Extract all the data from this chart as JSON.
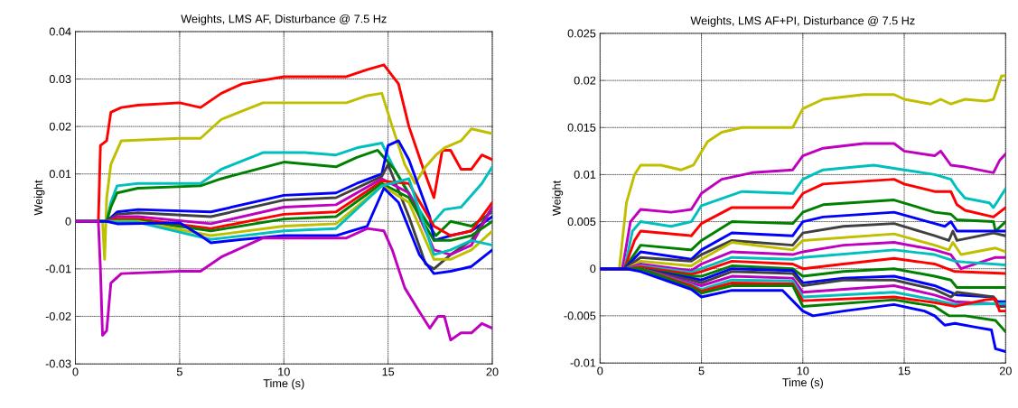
{
  "chart_data": [
    {
      "type": "line",
      "title": "Weights, LMS AF, Disturbance @ 7.5 Hz",
      "xlabel": "Time (s)",
      "ylabel": "Weight",
      "xlim": [
        0,
        20
      ],
      "ylim": [
        -0.03,
        0.04
      ],
      "xticks": [
        0,
        5,
        10,
        15,
        20
      ],
      "yticks": [
        -0.03,
        -0.02,
        -0.01,
        0,
        0.01,
        0.02,
        0.03,
        0.04
      ],
      "grid": true,
      "series": [
        {
          "color": "#ff0000",
          "x": [
            0,
            1.1,
            1.2,
            1.5,
            1.7,
            2.2,
            3,
            5,
            6,
            7,
            8,
            10,
            13,
            14,
            14.8,
            15.5,
            16,
            16.7,
            17.2,
            17.6,
            18,
            18.5,
            19,
            19.5,
            20
          ],
          "values": [
            0,
            0,
            0.016,
            0.017,
            0.023,
            0.024,
            0.0245,
            0.025,
            0.024,
            0.027,
            0.029,
            0.0305,
            0.0305,
            0.032,
            0.033,
            0.029,
            0.02,
            0.011,
            0.005,
            0.015,
            0.015,
            0.011,
            0.011,
            0.014,
            0.013
          ]
        },
        {
          "color": "#bfbf00",
          "x": [
            0,
            1.3,
            1.4,
            1.5,
            1.7,
            2.2,
            5,
            6,
            7,
            9,
            13,
            14,
            14.7,
            15.2,
            15.8,
            16.3,
            16.8,
            17.3,
            17.7,
            18.5,
            19,
            19.5,
            20
          ],
          "values": [
            0,
            0,
            -0.008,
            0.005,
            0.012,
            0.017,
            0.0175,
            0.0175,
            0.0215,
            0.025,
            0.025,
            0.0265,
            0.027,
            0.02,
            0.012,
            0.008,
            0.0115,
            0.014,
            0.0155,
            0.017,
            0.0195,
            0.019,
            0.0185
          ]
        },
        {
          "color": "#00bfbf",
          "x": [
            0,
            1.5,
            1.7,
            2,
            3,
            6,
            7,
            9,
            11,
            12.5,
            13.5,
            14.7,
            15.3,
            16,
            17,
            17.7,
            18.5,
            19.5,
            20
          ],
          "values": [
            0,
            0,
            0.004,
            0.0075,
            0.008,
            0.008,
            0.011,
            0.0145,
            0.0145,
            0.014,
            0.0155,
            0.0165,
            0.011,
            0.006,
            -0.001,
            0.0025,
            0.003,
            0.008,
            0.0115
          ]
        },
        {
          "color": "#008000",
          "x": [
            0,
            1.5,
            1.7,
            2,
            3,
            6,
            7,
            10,
            12.5,
            13.5,
            14.5,
            15.3,
            16.5,
            17.3,
            18,
            19,
            20
          ],
          "values": [
            0,
            0,
            0.003,
            0.006,
            0.007,
            0.0075,
            0.009,
            0.0125,
            0.0115,
            0.0135,
            0.015,
            0.011,
            0.002,
            -0.003,
            0,
            -0.001,
            0.002
          ]
        },
        {
          "color": "#0000ff",
          "x": [
            0,
            1.5,
            2,
            3,
            6.5,
            10,
            12.5,
            13.5,
            14.7,
            15,
            15.5,
            16,
            17,
            17.2,
            18,
            19,
            20
          ],
          "values": [
            0,
            0,
            0.002,
            0.0025,
            0.002,
            0.0055,
            0.006,
            0.008,
            0.01,
            0.016,
            0.017,
            0.013,
            0.001,
            -0.004,
            -0.003,
            -0.002,
            0.001
          ]
        },
        {
          "color": "#404040",
          "x": [
            0,
            1.5,
            2,
            3,
            6.5,
            10,
            12.5,
            14.7,
            15,
            16,
            16.8,
            17.2,
            18,
            19,
            20
          ],
          "values": [
            0,
            0,
            0.0015,
            0.0018,
            0.001,
            0.0045,
            0.005,
            0.0095,
            0.012,
            0.001,
            -0.009,
            -0.01,
            -0.007,
            -0.004,
            0.003
          ]
        },
        {
          "color": "#bf00bf",
          "x": [
            0,
            1.5,
            2,
            3,
            6.5,
            10,
            12.5,
            14.7,
            16,
            17.2,
            18,
            19,
            20
          ],
          "values": [
            0,
            0,
            0.001,
            0.001,
            -0.0005,
            0.003,
            0.0035,
            0.009,
            0.006,
            -0.006,
            -0.007,
            -0.005,
            0.003
          ]
        },
        {
          "color": "#ff0000",
          "x": [
            0,
            1.5,
            2,
            3,
            6.5,
            10,
            12.5,
            14.7,
            16,
            17.2,
            18,
            19,
            20
          ],
          "values": [
            0,
            0,
            0.0005,
            0.0005,
            -0.0015,
            0.0015,
            0.002,
            0.0085,
            0.008,
            -0.001,
            -0.003,
            -0.002,
            0.004
          ]
        },
        {
          "color": "#008000",
          "x": [
            0,
            1.5,
            2,
            3,
            6.5,
            10,
            12.5,
            14.7,
            16,
            17.2,
            18,
            19,
            20
          ],
          "values": [
            0,
            0,
            0.0002,
            0.0002,
            -0.002,
            0.0005,
            0.001,
            0.008,
            0.005,
            -0.004,
            -0.004,
            -0.003,
            0
          ]
        },
        {
          "color": "#bfbf00",
          "x": [
            0,
            1.5,
            2,
            3,
            6.5,
            10,
            12.5,
            14.7,
            16,
            17.2,
            18,
            19,
            20
          ],
          "values": [
            0,
            0,
            0,
            0,
            -0.003,
            -0.001,
            -0.0005,
            0.0075,
            0.004,
            -0.008,
            -0.008,
            -0.006,
            -0.002
          ]
        },
        {
          "color": "#00bfbf",
          "x": [
            0,
            1.5,
            2,
            3,
            6.5,
            10,
            12.5,
            14.7,
            16,
            17.2,
            18,
            19,
            20
          ],
          "values": [
            0,
            0,
            -0.0002,
            -0.0002,
            -0.0038,
            -0.002,
            -0.0015,
            0.0075,
            0.009,
            -0.007,
            -0.006,
            -0.004,
            -0.005
          ]
        },
        {
          "color": "#0000ff",
          "x": [
            0,
            1.5,
            2,
            5,
            6,
            6.5,
            8,
            10,
            12.5,
            14,
            14.8,
            15.5,
            16.5,
            17.2,
            18,
            19,
            20
          ],
          "values": [
            0,
            0,
            -0.0005,
            -0.0003,
            -0.003,
            -0.0045,
            -0.0038,
            -0.003,
            -0.003,
            -0.001,
            0.007,
            0.004,
            -0.007,
            -0.011,
            -0.0105,
            -0.0095,
            -0.006
          ]
        },
        {
          "color": "#bf00bf",
          "x": [
            0,
            1.1,
            1.2,
            1.3,
            1.5,
            1.7,
            2.2,
            5,
            6,
            7,
            9,
            13,
            14,
            14.8,
            15.2,
            15.8,
            16.5,
            17,
            17.4,
            17.7,
            18,
            18.5,
            19,
            19.5,
            20
          ],
          "values": [
            0,
            0,
            -0.01,
            -0.024,
            -0.023,
            -0.013,
            -0.011,
            -0.0105,
            -0.0105,
            -0.0075,
            -0.0035,
            -0.0035,
            -0.0015,
            -0.002,
            -0.006,
            -0.014,
            -0.019,
            -0.0225,
            -0.02,
            -0.02,
            -0.025,
            -0.0235,
            -0.0235,
            -0.0215,
            -0.0225
          ]
        }
      ]
    },
    {
      "type": "line",
      "title": "Weights, LMS AF+PI, Disturbance @ 7.5 Hz",
      "xlabel": "Time (s)",
      "ylabel": "Weight",
      "xlim": [
        0,
        20
      ],
      "ylim": [
        -0.01,
        0.025
      ],
      "xticks": [
        0,
        5,
        10,
        15,
        20
      ],
      "yticks": [
        -0.01,
        -0.005,
        0,
        0.005,
        0.01,
        0.015,
        0.02,
        0.025
      ],
      "grid": true,
      "series": [
        {
          "color": "#bfbf00",
          "x": [
            0,
            0.95,
            1.3,
            1.7,
            2,
            3,
            4,
            4.6,
            5.3,
            6,
            7,
            9.5,
            10,
            11,
            13,
            14.5,
            15,
            16.3,
            16.8,
            17.3,
            18,
            19,
            19.4,
            19.8,
            20
          ],
          "values": [
            0,
            0,
            0.007,
            0.01,
            0.011,
            0.011,
            0.0105,
            0.011,
            0.0135,
            0.0145,
            0.015,
            0.015,
            0.017,
            0.018,
            0.0185,
            0.0185,
            0.018,
            0.0175,
            0.018,
            0.0175,
            0.018,
            0.0178,
            0.018,
            0.0205,
            0.0205
          ]
        },
        {
          "color": "#bf00bf",
          "x": [
            0,
            1.1,
            1.5,
            2,
            3.5,
            4.5,
            5,
            6,
            7.5,
            9.5,
            10,
            11,
            13,
            14.5,
            15,
            16.5,
            16.8,
            17.3,
            18,
            19.4,
            19.7,
            20
          ],
          "values": [
            0,
            0,
            0.005,
            0.0063,
            0.006,
            0.0063,
            0.008,
            0.0095,
            0.0102,
            0.0105,
            0.012,
            0.0128,
            0.0133,
            0.0133,
            0.0125,
            0.012,
            0.0125,
            0.011,
            0.0108,
            0.0102,
            0.0115,
            0.0122
          ]
        },
        {
          "color": "#00bfbf",
          "x": [
            0,
            1.2,
            1.6,
            2,
            3.5,
            4.5,
            5,
            7,
            9.5,
            10,
            11,
            13.5,
            15,
            16.5,
            17.3,
            17.6,
            18,
            19.2,
            19.4,
            20
          ],
          "values": [
            0,
            0,
            0.004,
            0.005,
            0.0045,
            0.005,
            0.0067,
            0.0082,
            0.008,
            0.0095,
            0.0105,
            0.011,
            0.0105,
            0.01,
            0.0095,
            0.0085,
            0.0075,
            0.007,
            0.0065,
            0.0085
          ]
        },
        {
          "color": "#ff0000",
          "x": [
            0,
            1.2,
            1.7,
            2,
            4.5,
            5,
            6.5,
            9.5,
            10,
            11,
            14.5,
            15,
            16.5,
            17.3,
            17.6,
            18,
            19.4,
            20
          ],
          "values": [
            0,
            0,
            0.003,
            0.004,
            0.0035,
            0.0048,
            0.0065,
            0.0065,
            0.008,
            0.009,
            0.0095,
            0.009,
            0.0082,
            0.0082,
            0.0068,
            0.0062,
            0.0055,
            0.0065
          ]
        },
        {
          "color": "#008000",
          "x": [
            0,
            1.2,
            2,
            4.5,
            5,
            6.5,
            9.5,
            10,
            11,
            14.5,
            16.5,
            17.3,
            17.6,
            19.4,
            19.5,
            20
          ],
          "values": [
            0,
            0,
            0.0025,
            0.002,
            0.003,
            0.005,
            0.0048,
            0.006,
            0.0068,
            0.0073,
            0.006,
            0.0058,
            0.0052,
            0.005,
            0.004,
            0.005
          ]
        },
        {
          "color": "#0000ff",
          "x": [
            0,
            1.2,
            2,
            4.5,
            5,
            6.5,
            9.5,
            10,
            11,
            14.5,
            16.5,
            17,
            17.3,
            17.6,
            19.4,
            20
          ],
          "values": [
            0,
            0,
            0.0018,
            0.001,
            0.002,
            0.0038,
            0.0035,
            0.005,
            0.0055,
            0.006,
            0.0048,
            0.0045,
            0.005,
            0.004,
            0.004,
            0.004
          ]
        },
        {
          "color": "#404040",
          "x": [
            0,
            1.2,
            2,
            4.5,
            5,
            6.5,
            9.5,
            10,
            12,
            14.5,
            16.5,
            17.2,
            17.4,
            17.6,
            19.4,
            20
          ],
          "values": [
            0,
            0,
            0.0012,
            0.0008,
            0.0015,
            0.003,
            0.0025,
            0.0038,
            0.0045,
            0.0048,
            0.0035,
            0.003,
            0.004,
            0.003,
            0.0038,
            0.0035
          ]
        },
        {
          "color": "#bfbf00",
          "x": [
            0,
            1.3,
            2,
            4.5,
            5,
            6.5,
            9.5,
            10,
            14.5,
            16.5,
            17.2,
            17.4,
            17.8,
            19.5,
            20
          ],
          "values": [
            0,
            0,
            0.0008,
            0.0003,
            0.001,
            0.0028,
            0.002,
            0.003,
            0.0037,
            0.0025,
            0.002,
            0.0028,
            0.0015,
            0.0022,
            0.0018
          ]
        },
        {
          "color": "#bf00bf",
          "x": [
            0,
            1.3,
            2,
            4.5,
            5,
            6.5,
            9.5,
            10,
            12,
            14.5,
            16.5,
            17.3,
            17.8,
            19.5,
            20
          ],
          "values": [
            0,
            0,
            0.0005,
            -0.0002,
            0.0005,
            0.0018,
            0.0015,
            0.0018,
            0.0025,
            0.0028,
            0.002,
            0.0015,
            0,
            0.0012,
            0.0012
          ]
        },
        {
          "color": "#00bfbf",
          "x": [
            0,
            1.3,
            2,
            4.5,
            5,
            6.5,
            9.5,
            10,
            14.5,
            16.5,
            17.5,
            18,
            20
          ],
          "values": [
            0,
            0,
            0.0003,
            -0.0004,
            0,
            0.0012,
            0.001,
            0.0012,
            0.002,
            0.0015,
            0.0008,
            0.0007,
            0.0004
          ]
        },
        {
          "color": "#ff0000",
          "x": [
            0,
            1.3,
            2,
            4.5,
            5,
            6.5,
            9.5,
            10,
            12,
            14.5,
            16.5,
            17.5,
            20
          ],
          "values": [
            0,
            0,
            0.0002,
            -0.0006,
            -0.0003,
            0.0008,
            0.0005,
            0,
            0.0005,
            0.0011,
            0.0005,
            -0.0003,
            -0.0005
          ]
        },
        {
          "color": "#008000",
          "x": [
            0,
            1.3,
            2,
            4.5,
            5,
            6.5,
            9.5,
            10,
            12,
            14.5,
            16.5,
            17.3,
            17.6,
            20
          ],
          "values": [
            0,
            0,
            0,
            -0.0008,
            -0.0008,
            0.0003,
            0,
            -0.0008,
            -0.0003,
            0,
            -0.0008,
            -0.0012,
            -0.002,
            -0.002
          ]
        },
        {
          "color": "#0000ff",
          "x": [
            0,
            1.3,
            2,
            4.5,
            5,
            6.5,
            9.5,
            10,
            12,
            14.5,
            16.5,
            17.3,
            17.6,
            19.4,
            19.6,
            20
          ],
          "values": [
            0,
            0,
            0,
            -0.001,
            -0.0012,
            0,
            -0.0002,
            -0.0015,
            -0.001,
            -0.0008,
            -0.0018,
            -0.0025,
            -0.0028,
            -0.003,
            -0.0035,
            -0.0035
          ]
        },
        {
          "color": "#404040",
          "x": [
            0,
            1.3,
            2,
            4.5,
            5,
            6.5,
            9.5,
            10,
            12,
            14.5,
            16.5,
            17.3,
            17.6,
            19.4,
            19.6,
            20
          ],
          "values": [
            0,
            0,
            0,
            -0.0012,
            -0.0015,
            -0.0003,
            -0.0005,
            -0.0018,
            -0.0012,
            -0.0012,
            -0.0022,
            -0.003,
            -0.0025,
            -0.003,
            -0.004,
            -0.004
          ]
        },
        {
          "color": "#bf00bf",
          "x": [
            0,
            1.3,
            2,
            4.5,
            5,
            6.5,
            9.5,
            10,
            14.5,
            16.5,
            17.5,
            20
          ],
          "values": [
            0,
            0,
            0,
            -0.0015,
            -0.0018,
            -0.0008,
            -0.001,
            -0.0025,
            -0.0018,
            -0.0028,
            -0.0035,
            -0.0038
          ]
        },
        {
          "color": "#00bfbf",
          "x": [
            2,
            4.5,
            5,
            6.5,
            9.5,
            10,
            14.5,
            16.5,
            17.5,
            20
          ],
          "values": [
            0,
            -0.0017,
            -0.0022,
            -0.0012,
            -0.0013,
            -0.003,
            -0.0025,
            -0.0033,
            -0.0038,
            -0.0037
          ]
        },
        {
          "color": "#ff0000",
          "x": [
            0,
            1.3,
            2,
            4.5,
            5,
            6.5,
            9.5,
            10,
            14.5,
            16.5,
            17.5,
            19,
            19.5,
            19.7,
            20
          ],
          "values": [
            0,
            0,
            0,
            -0.0018,
            -0.0024,
            -0.0015,
            -0.0016,
            -0.0034,
            -0.003,
            -0.0036,
            -0.004,
            -0.0033,
            -0.0032,
            -0.0045,
            -0.0045
          ]
        },
        {
          "color": "#008000",
          "x": [
            0,
            1.3,
            2,
            4.5,
            5,
            6.5,
            9.5,
            10,
            14.5,
            16.5,
            17.2,
            18,
            19.5,
            20
          ],
          "values": [
            0,
            0,
            0,
            -0.002,
            -0.0026,
            -0.0018,
            -0.0018,
            -0.004,
            -0.0033,
            -0.004,
            -0.005,
            -0.005,
            -0.0055,
            -0.0067
          ]
        },
        {
          "color": "#0000ff",
          "x": [
            0,
            1.3,
            2,
            4.5,
            5,
            6.5,
            9,
            10,
            10.5,
            12,
            14.5,
            16,
            16.5,
            17,
            17.5,
            18.5,
            19.3,
            19.5,
            20
          ],
          "values": [
            0,
            0,
            -0.0003,
            -0.0022,
            -0.003,
            -0.0023,
            -0.0023,
            -0.0045,
            -0.005,
            -0.0045,
            -0.0038,
            -0.0045,
            -0.005,
            -0.006,
            -0.0058,
            -0.0062,
            -0.0065,
            -0.0085,
            -0.0088
          ]
        }
      ]
    }
  ]
}
